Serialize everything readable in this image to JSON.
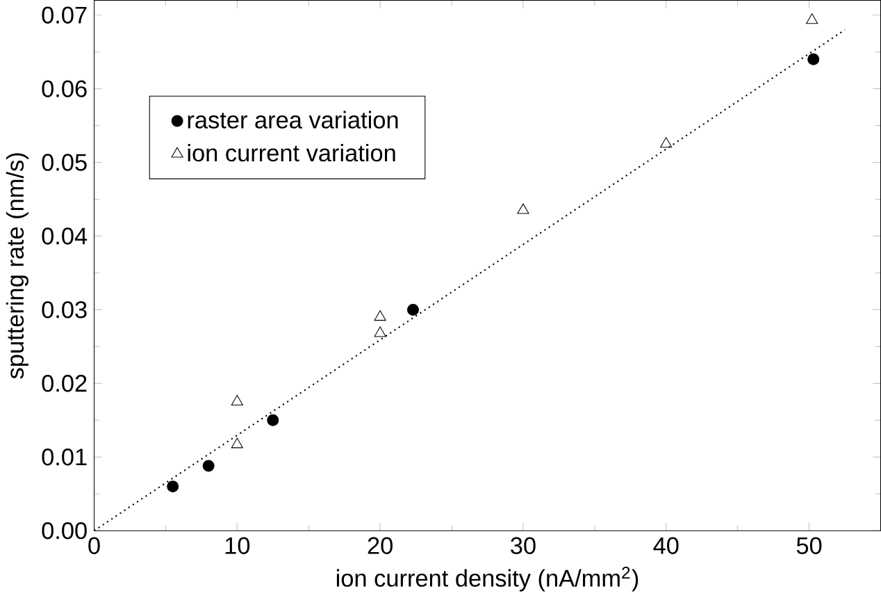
{
  "chart_data": {
    "type": "scatter",
    "xlabel": "ion current density (nA/mm$^{2}$)",
    "ylabel": "sputtering rate (nm/s)",
    "xlim": [
      0,
      55
    ],
    "ylim": [
      0,
      0.072
    ],
    "xticks": [
      0,
      10,
      20,
      30,
      40,
      50
    ],
    "yticks": [
      {
        "value": 0,
        "label": "0.00"
      },
      {
        "value": 0.01,
        "label": "0.01"
      },
      {
        "value": 0.02,
        "label": "0.02"
      },
      {
        "value": 0.03,
        "label": "0.03"
      },
      {
        "value": 0.04,
        "label": "0.04"
      },
      {
        "value": 0.05,
        "label": "0.05"
      },
      {
        "value": 0.06,
        "label": "0.06"
      },
      {
        "value": 0.07,
        "label": "0.07"
      }
    ],
    "legend": "top left",
    "grid": false,
    "series": [
      {
        "name": "raster area variation",
        "color": "#000000",
        "marker": "circle",
        "x": [
          5.5,
          8,
          12.5,
          22.3,
          50.3
        ],
        "values": [
          0.006,
          0.0088,
          0.015,
          0.03,
          0.064
        ]
      },
      {
        "name": "ion current variation",
        "color": "#000000",
        "marker": "triangle",
        "x": [
          10,
          10,
          20,
          20,
          30,
          40,
          50.2
        ],
        "values": [
          0.0175,
          0.0117,
          0.029,
          0.0268,
          0.0435,
          0.0525,
          0.0693
        ]
      },
      {
        "type": "line",
        "color": "#000000",
        "line_style": "dotted",
        "marker": "none",
        "x": [
          0,
          52.5
        ],
        "values": [
          0,
          0.068
        ]
      }
    ]
  }
}
